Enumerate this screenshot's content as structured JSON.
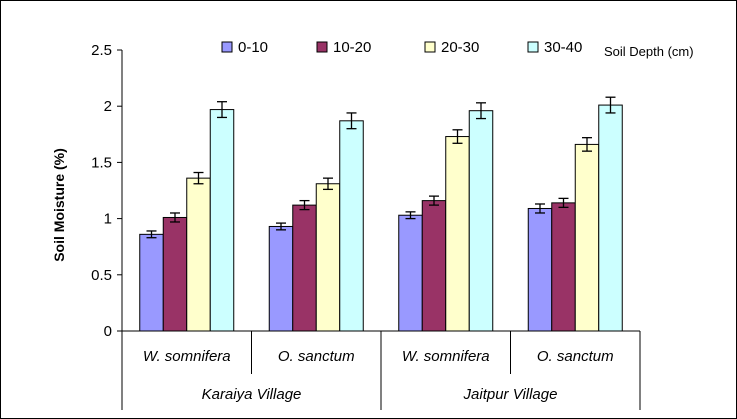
{
  "chart_data": {
    "type": "bar",
    "ylabel": "Soil Moisture (%)",
    "ylim": [
      0,
      2.5
    ],
    "yticks": [
      "0",
      "0.5",
      "1",
      "1.5",
      "2",
      "2.5"
    ],
    "legend_title": "Soil Depth (cm)",
    "legend_position": "top",
    "categories": [
      "W. somnifera",
      "O. sanctum",
      "W. somnifera",
      "O. sanctum"
    ],
    "groups": [
      "Karaiya Village",
      "Jaitpur Village"
    ],
    "series": [
      {
        "name": "0-10",
        "color": "#9999ff",
        "values": [
          0.86,
          0.93,
          1.03,
          1.09
        ],
        "errors": [
          0.03,
          0.03,
          0.03,
          0.04
        ]
      },
      {
        "name": "10-20",
        "color": "#993366",
        "values": [
          1.01,
          1.12,
          1.16,
          1.14
        ],
        "errors": [
          0.04,
          0.04,
          0.04,
          0.04
        ]
      },
      {
        "name": "20-30",
        "color": "#ffffcc",
        "values": [
          1.36,
          1.31,
          1.73,
          1.66
        ],
        "errors": [
          0.05,
          0.05,
          0.06,
          0.06
        ]
      },
      {
        "name": "30-40",
        "color": "#ccffff",
        "values": [
          1.97,
          1.87,
          1.96,
          2.01
        ],
        "errors": [
          0.07,
          0.07,
          0.07,
          0.07
        ]
      }
    ]
  }
}
